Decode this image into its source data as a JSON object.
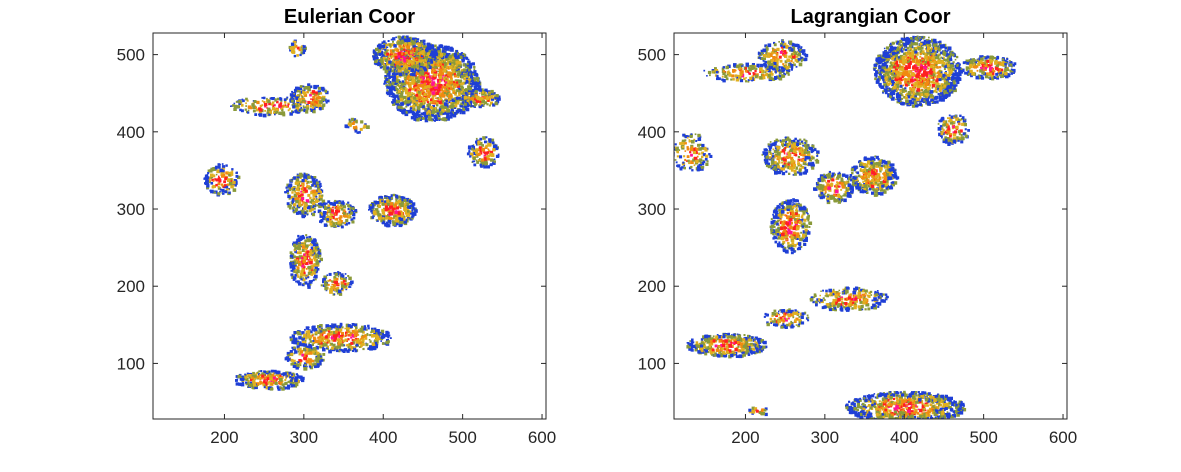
{
  "chart_data": [
    {
      "type": "heatmap",
      "title": "Eulerian Coor",
      "xlabel": "",
      "ylabel": "",
      "xlim": [
        110,
        605
      ],
      "ylim": [
        28,
        528
      ],
      "xticks": [
        200,
        300,
        400,
        500,
        600
      ],
      "yticks": [
        100,
        200,
        300,
        400,
        500
      ],
      "grid": false,
      "colors": [
        "#1f3fd6",
        "#8a9a3a",
        "#e0b020",
        "#f08a10",
        "#ff2020",
        "#ff1493"
      ],
      "regions": [
        {
          "x": 460,
          "y": 465,
          "rx": 60,
          "ry": 50,
          "density": 1.0
        },
        {
          "x": 425,
          "y": 500,
          "rx": 40,
          "ry": 25,
          "density": 1.0
        },
        {
          "x": 520,
          "y": 445,
          "rx": 25,
          "ry": 12,
          "density": 0.8
        },
        {
          "x": 255,
          "y": 435,
          "rx": 50,
          "ry": 12,
          "density": 0.5
        },
        {
          "x": 305,
          "y": 445,
          "rx": 25,
          "ry": 18,
          "density": 0.8
        },
        {
          "x": 290,
          "y": 510,
          "rx": 10,
          "ry": 12,
          "density": 0.5
        },
        {
          "x": 195,
          "y": 340,
          "rx": 22,
          "ry": 20,
          "density": 0.6
        },
        {
          "x": 300,
          "y": 320,
          "rx": 25,
          "ry": 28,
          "density": 0.7
        },
        {
          "x": 340,
          "y": 295,
          "rx": 25,
          "ry": 18,
          "density": 0.7
        },
        {
          "x": 410,
          "y": 300,
          "rx": 30,
          "ry": 20,
          "density": 0.9
        },
        {
          "x": 300,
          "y": 235,
          "rx": 20,
          "ry": 35,
          "density": 0.8
        },
        {
          "x": 340,
          "y": 205,
          "rx": 20,
          "ry": 15,
          "density": 0.6
        },
        {
          "x": 525,
          "y": 375,
          "rx": 20,
          "ry": 20,
          "density": 0.6
        },
        {
          "x": 365,
          "y": 410,
          "rx": 15,
          "ry": 10,
          "density": 0.4
        },
        {
          "x": 345,
          "y": 135,
          "rx": 65,
          "ry": 18,
          "density": 0.7
        },
        {
          "x": 255,
          "y": 80,
          "rx": 45,
          "ry": 12,
          "density": 0.9
        },
        {
          "x": 300,
          "y": 110,
          "rx": 25,
          "ry": 15,
          "density": 0.6
        }
      ]
    },
    {
      "type": "heatmap",
      "title": "Lagrangian Coor",
      "xlabel": "",
      "ylabel": "",
      "xlim": [
        110,
        605
      ],
      "ylim": [
        28,
        528
      ],
      "xticks": [
        200,
        300,
        400,
        500,
        600
      ],
      "yticks": [
        100,
        200,
        300,
        400,
        500
      ],
      "grid": false,
      "colors": [
        "#1f3fd6",
        "#8a9a3a",
        "#e0b020",
        "#f08a10",
        "#ff2020",
        "#ff1493"
      ],
      "regions": [
        {
          "x": 415,
          "y": 480,
          "rx": 55,
          "ry": 45,
          "density": 1.0
        },
        {
          "x": 505,
          "y": 485,
          "rx": 35,
          "ry": 15,
          "density": 0.8
        },
        {
          "x": 200,
          "y": 478,
          "rx": 55,
          "ry": 12,
          "density": 0.5
        },
        {
          "x": 245,
          "y": 500,
          "rx": 30,
          "ry": 20,
          "density": 0.7
        },
        {
          "x": 460,
          "y": 405,
          "rx": 20,
          "ry": 20,
          "density": 0.6
        },
        {
          "x": 130,
          "y": 375,
          "rx": 25,
          "ry": 25,
          "density": 0.4
        },
        {
          "x": 255,
          "y": 370,
          "rx": 35,
          "ry": 25,
          "density": 0.7
        },
        {
          "x": 310,
          "y": 330,
          "rx": 25,
          "ry": 20,
          "density": 0.7
        },
        {
          "x": 360,
          "y": 345,
          "rx": 30,
          "ry": 25,
          "density": 0.9
        },
        {
          "x": 255,
          "y": 280,
          "rx": 25,
          "ry": 35,
          "density": 0.7
        },
        {
          "x": 330,
          "y": 185,
          "rx": 50,
          "ry": 15,
          "density": 0.6
        },
        {
          "x": 250,
          "y": 160,
          "rx": 30,
          "ry": 12,
          "density": 0.6
        },
        {
          "x": 175,
          "y": 125,
          "rx": 50,
          "ry": 15,
          "density": 0.9
        },
        {
          "x": 400,
          "y": 45,
          "rx": 75,
          "ry": 20,
          "density": 1.0
        },
        {
          "x": 215,
          "y": 40,
          "rx": 15,
          "ry": 5,
          "density": 0.5
        }
      ]
    }
  ]
}
